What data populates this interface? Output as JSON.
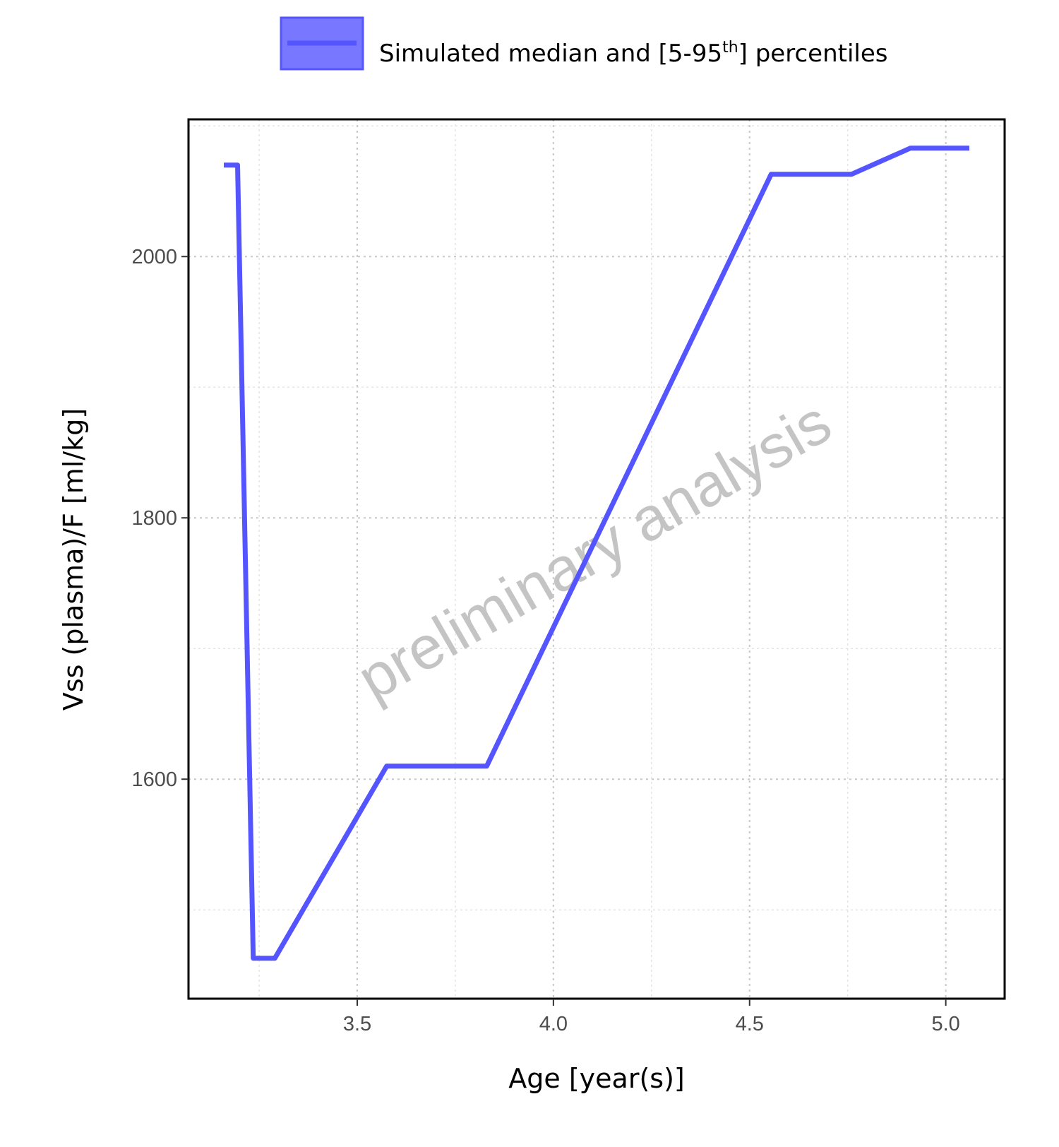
{
  "chart_data": {
    "type": "line",
    "title": "",
    "xlabel": "Age [year(s)]",
    "ylabel": "Vss (plasma)/F [ml/kg]",
    "xlim": [
      3.07,
      5.15
    ],
    "ylim": [
      1432,
      2105
    ],
    "x_ticks": [
      3.5,
      4.0,
      4.5,
      5.0
    ],
    "x_tick_labels": [
      "3.5",
      "4.0",
      "4.5",
      "5.0"
    ],
    "x_minor_ticks": [
      3.25,
      3.75,
      4.25,
      4.75
    ],
    "y_ticks": [
      1600,
      1800,
      2000
    ],
    "y_tick_labels": [
      "1600",
      "1800",
      "2000"
    ],
    "y_minor_ticks": [
      1500,
      1700,
      1900,
      2100
    ],
    "grid": true,
    "legend": {
      "position": "top",
      "label_prefix": "Simulated median and [5-95",
      "label_sup": "th",
      "label_suffix": "] percentiles"
    },
    "watermark": "preliminary analysis",
    "series": [
      {
        "name": "Simulated median and [5-95th] percentiles",
        "color": "#5555ff",
        "fill_color": "#7777ff",
        "x": [
          3.16,
          3.195,
          3.235,
          3.29,
          3.575,
          3.83,
          4.555,
          4.76,
          4.91,
          5.06
        ],
        "values": [
          2070,
          2070,
          1463,
          1463,
          1610,
          1610,
          2063,
          2063,
          2083,
          2083
        ]
      }
    ]
  }
}
